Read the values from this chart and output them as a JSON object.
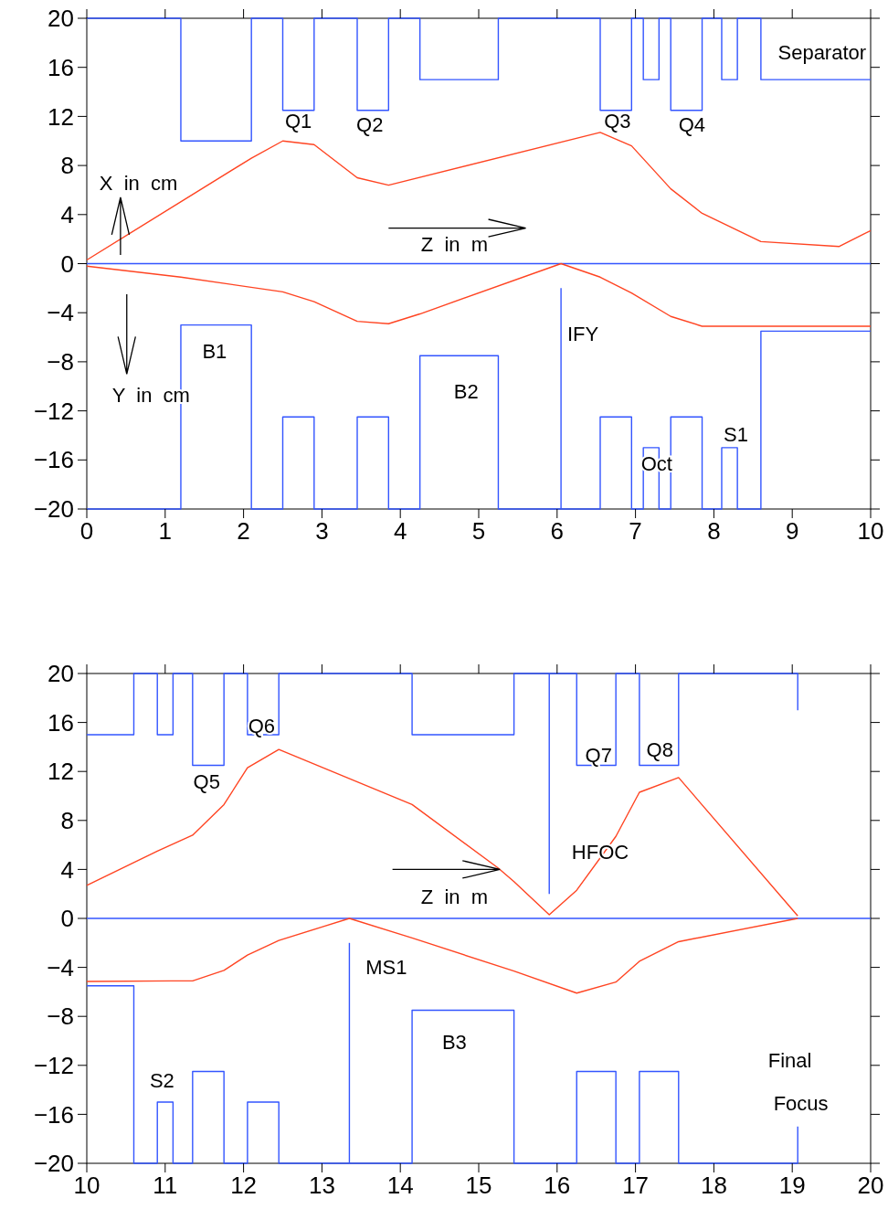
{
  "chart_data": [
    {
      "type": "line",
      "xlim": [
        0,
        10
      ],
      "ylim": [
        -20,
        20
      ],
      "xticks": [
        0,
        1,
        2,
        3,
        4,
        5,
        6,
        7,
        8,
        9,
        10
      ],
      "yticks": [
        -20,
        -16,
        -12,
        -8,
        -4,
        0,
        4,
        8,
        12,
        16,
        20
      ],
      "marker": "none",
      "line_style": "solid",
      "ref_lines": [
        {
          "axis": "y",
          "value": 0,
          "color": "#3355ff"
        }
      ],
      "series": [
        {
          "color": "#3355ff",
          "x": [
            0,
            1.2,
            1.2,
            2.1,
            2.1,
            2.5,
            2.5,
            2.9,
            2.9,
            3.45,
            3.45,
            3.85,
            3.85,
            4.25,
            4.25,
            5.25,
            5.25,
            6.55,
            6.55,
            6.95,
            6.95,
            7.1,
            7.1,
            7.3,
            7.3,
            7.45,
            7.45,
            7.85,
            7.85,
            8.1,
            8.1,
            8.3,
            8.3,
            8.6,
            8.6,
            10
          ],
          "values": [
            20,
            20,
            10,
            10,
            20,
            20,
            12.5,
            12.5,
            20,
            20,
            12.5,
            12.5,
            20,
            20,
            15,
            15,
            20,
            20,
            12.5,
            12.5,
            20,
            20,
            15,
            15,
            20,
            20,
            12.5,
            12.5,
            20,
            20,
            15,
            15,
            20,
            20,
            15,
            15
          ]
        },
        {
          "color": "#3355ff",
          "x": [
            0,
            1.2,
            1.2,
            2.1,
            2.1,
            2.5,
            2.5,
            2.9,
            2.9,
            3.45,
            3.45,
            3.85,
            3.85,
            4.25,
            4.25,
            5.25,
            5.25,
            6.55,
            6.55,
            6.95,
            6.95,
            7.1,
            7.1,
            7.3,
            7.3,
            7.45,
            7.45,
            7.85,
            7.85,
            8.1,
            8.1,
            8.3,
            8.3,
            8.6,
            8.6,
            10
          ],
          "values": [
            -20,
            -20,
            -5,
            -5,
            -20,
            -20,
            -12.5,
            -12.5,
            -20,
            -20,
            -12.5,
            -12.5,
            -20,
            -20,
            -7.5,
            -7.5,
            -20,
            -20,
            -12.5,
            -12.5,
            -20,
            -20,
            -15,
            -15,
            -20,
            -20,
            -12.5,
            -12.5,
            -20,
            -20,
            -15,
            -15,
            -20,
            -20,
            -5.5,
            -5.5
          ]
        },
        {
          "color": "#3355ff",
          "x": [
            6.05,
            6.05
          ],
          "values": [
            -20,
            -2
          ]
        },
        {
          "color": "#ff4422",
          "x": [
            0,
            2.1,
            2.5,
            2.9,
            3.45,
            3.85,
            6.55,
            6.95,
            7.45,
            7.85,
            8.6,
            9.6,
            10
          ],
          "values": [
            0.3,
            8.6,
            10,
            9.7,
            7,
            6.4,
            10.7,
            9.6,
            6.1,
            4.1,
            1.8,
            1.4,
            2.7
          ]
        },
        {
          "color": "#ff4422",
          "x": [
            0,
            1.2,
            2.5,
            2.9,
            3.45,
            3.85,
            4.25,
            6.05,
            6.55,
            6.95,
            7.45,
            7.85,
            10
          ],
          "values": [
            -0.2,
            -1.1,
            -2.3,
            -3.1,
            -4.7,
            -4.9,
            -4.1,
            0,
            -1.1,
            -2.4,
            -4.3,
            -5.1,
            -5.1
          ]
        }
      ],
      "annotations": [
        "Separator",
        "Q1",
        "Q2",
        "Q3",
        "Q4",
        "X  in  cm",
        "Z  in  m",
        "B1",
        "Y  in  cm",
        "B2",
        "IFY",
        "Oct",
        "S1"
      ]
    },
    {
      "type": "line",
      "xlim": [
        10,
        20
      ],
      "ylim": [
        -20,
        20
      ],
      "xticks": [
        10,
        11,
        12,
        13,
        14,
        15,
        16,
        17,
        18,
        19,
        20
      ],
      "yticks": [
        -20,
        -16,
        -12,
        -8,
        -4,
        0,
        4,
        8,
        12,
        16,
        20
      ],
      "marker": "none",
      "line_style": "solid",
      "ref_lines": [
        {
          "axis": "y",
          "value": 0,
          "color": "#3355ff"
        }
      ],
      "series": [
        {
          "color": "#3355ff",
          "x": [
            10,
            10.6,
            10.6,
            10.9,
            10.9,
            11.1,
            11.1,
            11.35,
            11.35,
            11.75,
            11.75,
            12.05,
            12.05,
            12.45,
            12.45,
            14.15,
            14.15,
            15.45,
            15.45,
            16.25,
            16.25,
            16.75,
            16.75,
            17.05,
            17.05,
            17.55,
            17.55,
            19.07,
            19.07
          ],
          "values": [
            15,
            15,
            20,
            20,
            15,
            15,
            20,
            20,
            12.5,
            12.5,
            20,
            20,
            15,
            15,
            20,
            20,
            15,
            15,
            20,
            20,
            12.5,
            12.5,
            20,
            20,
            12.5,
            12.5,
            20,
            20,
            17
          ]
        },
        {
          "color": "#3355ff",
          "x": [
            10,
            10.6,
            10.6,
            10.9,
            10.9,
            11.1,
            11.1,
            11.35,
            11.35,
            11.75,
            11.75,
            12.05,
            12.05,
            12.45,
            12.45,
            14.15,
            14.15,
            15.45,
            15.45,
            16.25,
            16.25,
            16.75,
            16.75,
            17.05,
            17.05,
            17.55,
            17.55,
            19.07,
            19.07
          ],
          "values": [
            -5.5,
            -5.5,
            -20,
            -20,
            -15,
            -15,
            -20,
            -20,
            -12.5,
            -12.5,
            -20,
            -20,
            -15,
            -15,
            -20,
            -20,
            -7.5,
            -7.5,
            -20,
            -20,
            -12.5,
            -12.5,
            -20,
            -20,
            -12.5,
            -12.5,
            -20,
            -20,
            -17
          ]
        },
        {
          "color": "#3355ff",
          "x": [
            15.9,
            15.9
          ],
          "values": [
            20,
            2
          ]
        },
        {
          "color": "#3355ff",
          "x": [
            13.35,
            13.35
          ],
          "values": [
            -20,
            -2
          ]
        },
        {
          "color": "#ff4422",
          "x": [
            10,
            10.9,
            11.35,
            11.75,
            12.05,
            12.45,
            14.15,
            15.25,
            15.45,
            15.9,
            16.25,
            16.75,
            17.05,
            17.55,
            19.07
          ],
          "values": [
            2.7,
            5.5,
            6.8,
            9.3,
            12.3,
            13.8,
            9.3,
            4.1,
            3,
            0.3,
            2.3,
            6.7,
            10.3,
            11.5,
            0.2
          ]
        },
        {
          "color": "#ff4422",
          "x": [
            10,
            11.1,
            11.35,
            11.75,
            12.05,
            12.45,
            13,
            13.35,
            14.15,
            15.45,
            16.25,
            16.75,
            17.05,
            17.55,
            19.07
          ],
          "values": [
            -5.15,
            -5.1,
            -5.1,
            -4.25,
            -3,
            -1.8,
            -0.7,
            0,
            -1.6,
            -4.3,
            -6.1,
            -5.2,
            -3.5,
            -1.9,
            0
          ]
        }
      ],
      "annotations": [
        "Q5",
        "Q6",
        "Q7",
        "Q8",
        "HFOC",
        "Z  in  m",
        "MS1",
        "B3",
        "S2",
        "Final",
        "Focus"
      ]
    }
  ]
}
